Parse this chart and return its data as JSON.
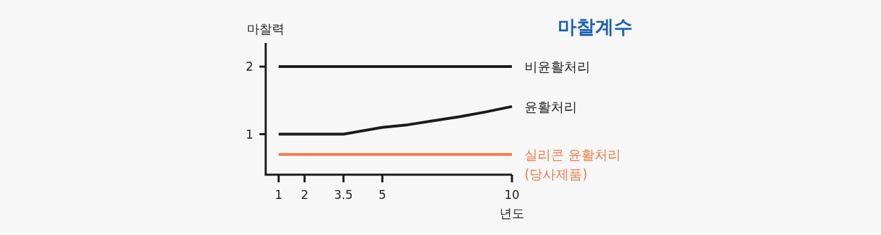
{
  "chart_data": {
    "type": "line",
    "title": "마찰계수",
    "xlabel": "년도",
    "ylabel": "마찰력",
    "x": [
      1,
      2,
      3.5,
      5,
      6,
      7,
      8,
      9,
      10
    ],
    "series": [
      {
        "name": "비윤활처리",
        "color": "#1a1a1a",
        "values": [
          2,
          2,
          2,
          2,
          2,
          2,
          2,
          2,
          2
        ]
      },
      {
        "name": "윤활처리",
        "color": "#1a1a1a",
        "values": [
          1,
          1,
          1,
          1.1,
          1.14,
          1.2,
          1.26,
          1.33,
          1.41
        ]
      },
      {
        "name": "실리콘 윤활처리 (당사제품)",
        "color": "#f07c4a",
        "values": [
          0.7,
          0.7,
          0.7,
          0.7,
          0.7,
          0.7,
          0.7,
          0.7,
          0.7
        ]
      }
    ],
    "xlim": [
      0.5,
      10
    ],
    "ylim": [
      0.4,
      2.35
    ],
    "xticks": [
      1,
      2,
      3.5,
      5,
      10
    ],
    "yticks": [
      1,
      2
    ]
  }
}
